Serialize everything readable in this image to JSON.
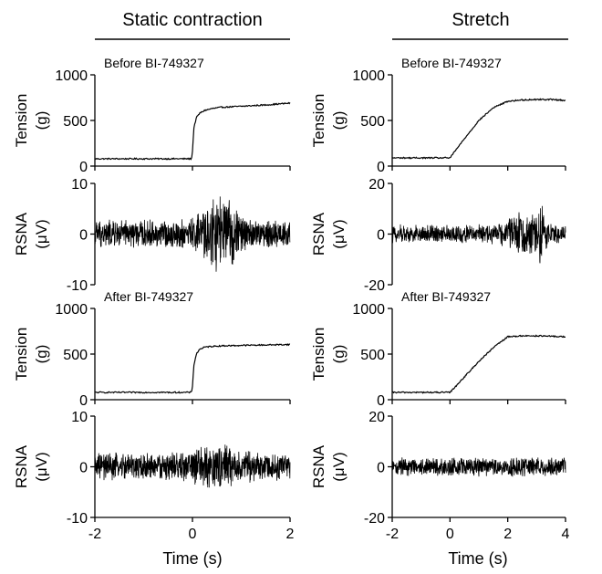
{
  "columns": [
    {
      "title": "Static contraction"
    },
    {
      "title": "Stretch"
    }
  ],
  "x_axis": {
    "label": "Time (s)"
  },
  "chart_data": [
    {
      "type": "line",
      "column": 0,
      "row": 0,
      "annotation": "Before BI-749327",
      "ylabel": [
        "Tension",
        "(g)"
      ],
      "xlim": [
        -2,
        2
      ],
      "ylim": [
        0,
        1000
      ],
      "yticks": [
        0,
        500,
        1000
      ],
      "xticks": [
        -2,
        0,
        2
      ],
      "x": [
        -2.0,
        -0.02,
        0.0,
        0.03,
        0.08,
        0.15,
        0.25,
        0.4,
        0.6,
        1.0,
        1.5,
        2.0
      ],
      "y": [
        80,
        80,
        160,
        420,
        530,
        580,
        610,
        630,
        645,
        655,
        670,
        690
      ]
    },
    {
      "type": "line",
      "column": 0,
      "row": 1,
      "ylabel": [
        "RSNA",
        "(μV)"
      ],
      "xlim": [
        -2,
        2
      ],
      "ylim": [
        -10,
        10
      ],
      "yticks": [
        -10,
        0,
        10
      ],
      "xticks": [
        -2,
        0,
        2
      ],
      "signal": {
        "kind": "noise",
        "baseline_amplitude": 3.0,
        "bursts": [
          {
            "center": 0.55,
            "width": 0.4,
            "amplitude": 8.5
          }
        ]
      }
    },
    {
      "type": "line",
      "column": 0,
      "row": 2,
      "annotation": "After BI-749327",
      "ylabel": [
        "Tension",
        "(g)"
      ],
      "xlim": [
        -2,
        2
      ],
      "ylim": [
        0,
        1000
      ],
      "yticks": [
        0,
        500,
        1000
      ],
      "xticks": [
        -2,
        0,
        2
      ],
      "x": [
        -2.0,
        -0.02,
        0.0,
        0.03,
        0.08,
        0.15,
        0.25,
        0.4,
        0.6,
        1.0,
        1.5,
        2.0
      ],
      "y": [
        80,
        80,
        150,
        380,
        500,
        555,
        575,
        585,
        590,
        595,
        600,
        605
      ]
    },
    {
      "type": "line",
      "column": 0,
      "row": 3,
      "ylabel": [
        "RSNA",
        "(μV)"
      ],
      "xlim": [
        -2,
        2
      ],
      "ylim": [
        -10,
        10
      ],
      "yticks": [
        -10,
        0,
        10
      ],
      "xticks": [
        -2,
        0,
        2
      ],
      "signal": {
        "kind": "noise",
        "baseline_amplitude": 3.0,
        "bursts": [
          {
            "center": 0.5,
            "width": 0.5,
            "amplitude": 5.0
          }
        ]
      }
    },
    {
      "type": "line",
      "column": 1,
      "row": 0,
      "annotation": "Before BI-749327",
      "ylabel": [
        "Tension",
        "(g)"
      ],
      "xlim": [
        -2,
        4
      ],
      "ylim": [
        0,
        1000
      ],
      "yticks": [
        0,
        500,
        1000
      ],
      "xticks": [
        -2,
        0,
        2,
        4
      ],
      "x": [
        -2.0,
        0.0,
        0.5,
        1.0,
        1.5,
        2.0,
        2.5,
        3.0,
        3.5,
        4.0
      ],
      "y": [
        90,
        90,
        300,
        500,
        640,
        710,
        725,
        730,
        730,
        720
      ]
    },
    {
      "type": "line",
      "column": 1,
      "row": 1,
      "ylabel": [
        "RSNA",
        "(μV)"
      ],
      "xlim": [
        -2,
        4
      ],
      "ylim": [
        -20,
        20
      ],
      "yticks": [
        -20,
        0,
        20
      ],
      "xticks": [
        -2,
        0,
        2,
        4
      ],
      "signal": {
        "kind": "noise",
        "baseline_amplitude": 4.0,
        "bursts": [
          {
            "center": 2.6,
            "width": 0.6,
            "amplitude": 10.0
          },
          {
            "center": 3.15,
            "width": 0.12,
            "amplitude": 13.0
          }
        ]
      }
    },
    {
      "type": "line",
      "column": 1,
      "row": 2,
      "annotation": "After BI-749327",
      "ylabel": [
        "Tension",
        "(g)"
      ],
      "xlim": [
        -2,
        4
      ],
      "ylim": [
        0,
        1000
      ],
      "yticks": [
        0,
        500,
        1000
      ],
      "xticks": [
        -2,
        0,
        2,
        4
      ],
      "x": [
        -2.0,
        0.0,
        0.5,
        1.0,
        1.5,
        2.0,
        2.5,
        3.0,
        3.5,
        4.0
      ],
      "y": [
        80,
        80,
        250,
        420,
        570,
        690,
        700,
        700,
        695,
        690
      ]
    },
    {
      "type": "line",
      "column": 1,
      "row": 3,
      "ylabel": [
        "RSNA",
        "(μV)"
      ],
      "xlim": [
        -2,
        4
      ],
      "ylim": [
        -20,
        20
      ],
      "yticks": [
        -20,
        0,
        20
      ],
      "xticks": [
        -2,
        0,
        2,
        4
      ],
      "signal": {
        "kind": "noise",
        "baseline_amplitude": 4.0,
        "bursts": []
      }
    }
  ]
}
